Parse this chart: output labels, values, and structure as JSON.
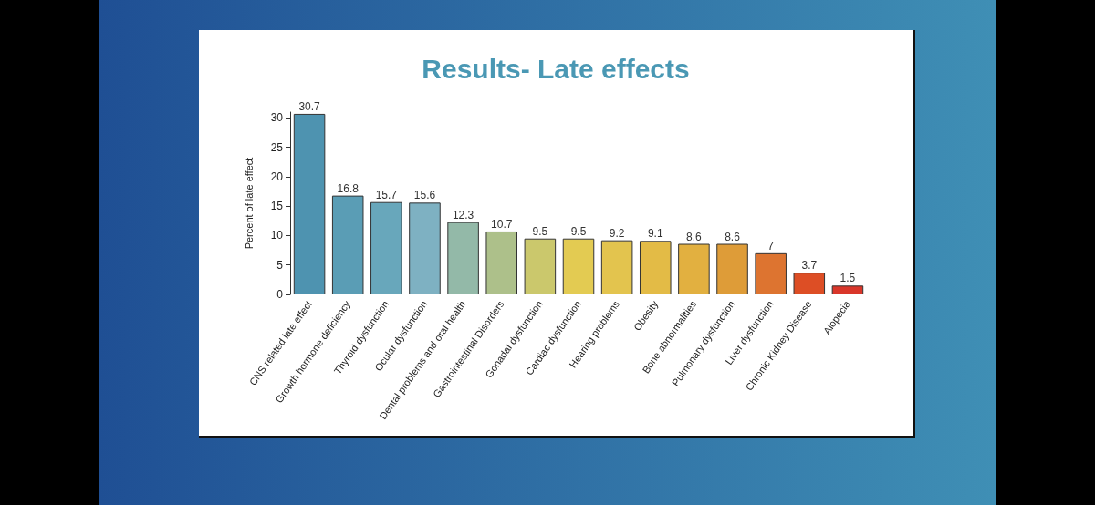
{
  "chart_data": {
    "type": "bar",
    "title": "Results- Late effects",
    "ylabel": "Percent of late effect",
    "categories": [
      "CNS related late effect",
      "Growth hormone deficiency",
      "Thyroid dysfunction",
      "Ocular dysfunction",
      "Dental problems and oral health",
      "Gastrointestinal Disorders",
      "Gonadal dysfunction",
      "Cardiac dysfunction",
      "Hearing problems",
      "Obesity",
      "Bone abnormalities",
      "Pulmonary dysfunction",
      "Liver dysfunction",
      "Chronic Kidney Disease",
      "Alopecia"
    ],
    "values": [
      30.7,
      16.8,
      15.7,
      15.6,
      12.3,
      10.7,
      9.5,
      9.5,
      9.2,
      9.1,
      8.6,
      8.6,
      7,
      3.7,
      1.5
    ],
    "colors": [
      "#4e93b0",
      "#5a9db5",
      "#68a7bb",
      "#7eb1c2",
      "#93b9a8",
      "#adc08a",
      "#cbc86c",
      "#e3cb52",
      "#e3c44e",
      "#e3bb46",
      "#e2b040",
      "#de9c38",
      "#dd7430",
      "#dd4e25",
      "#d9362a"
    ],
    "ylim": [
      0,
      31
    ],
    "yticks": [
      0,
      5,
      10,
      15,
      20,
      25,
      30
    ],
    "grid": false,
    "data_labels": true
  }
}
